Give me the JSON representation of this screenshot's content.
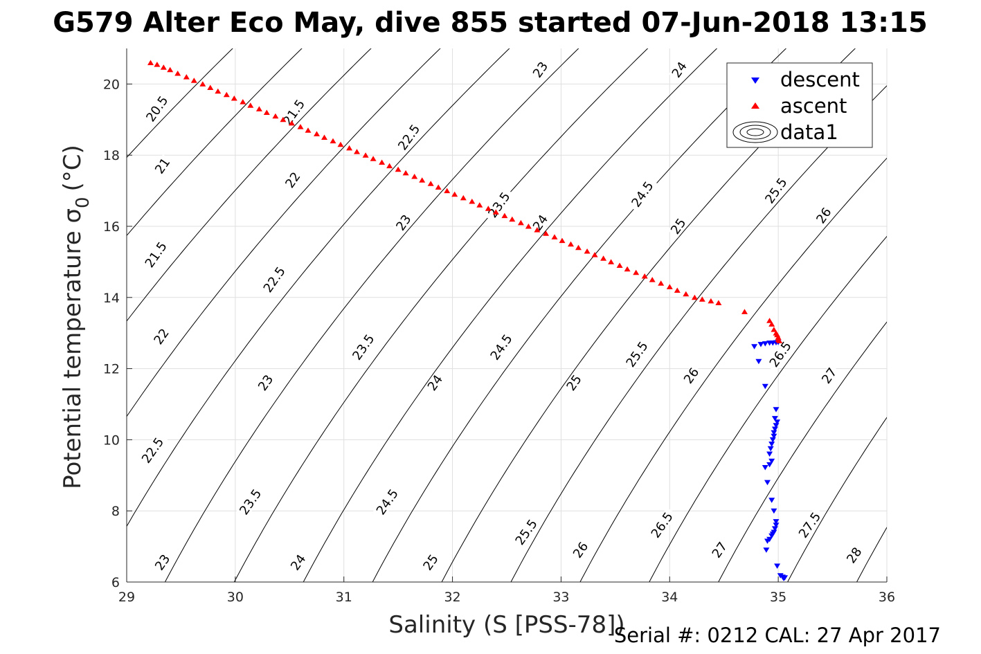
{
  "chart_data": {
    "type": "scatter",
    "title": "G579 Alter Eco May, dive 855 started 07-Jun-2018 13:15",
    "xlabel": "Salinity (S [PSS-78])",
    "ylabel": "Potential temperature σ",
    "ylabel_subscript": "0",
    "ylabel_unit": "(°C)",
    "xlim": [
      29,
      36
    ],
    "ylim": [
      6,
      21
    ],
    "x_ticks": [
      29,
      30,
      31,
      32,
      33,
      34,
      35,
      36
    ],
    "y_ticks": [
      6,
      8,
      10,
      12,
      14,
      16,
      18,
      20
    ],
    "grid": true,
    "legend": {
      "placement": "top-right",
      "entries": [
        {
          "label": "descent",
          "marker": "triangle-down",
          "color": "#0000ff"
        },
        {
          "label": "ascent",
          "marker": "triangle-up",
          "color": "#ff0000"
        },
        {
          "label": "data1",
          "marker": "contour"
        }
      ]
    },
    "contour_levels": [
      20.5,
      21,
      21.5,
      22,
      22.5,
      23,
      23.5,
      24,
      24.5,
      25,
      25.5,
      26,
      26.5,
      27,
      27.5,
      28
    ],
    "contour_labels": [
      {
        "text": "20.5",
        "s": 29.28,
        "t": 19.3
      },
      {
        "text": "21",
        "s": 29.33,
        "t": 17.7
      },
      {
        "text": "21.5",
        "s": 29.27,
        "t": 15.2
      },
      {
        "text": "22",
        "s": 29.32,
        "t": 12.9
      },
      {
        "text": "22.5",
        "s": 29.24,
        "t": 9.7
      },
      {
        "text": "23",
        "s": 29.33,
        "t": 6.55
      },
      {
        "text": "21.5",
        "s": 30.54,
        "t": 19.2
      },
      {
        "text": "22",
        "s": 30.53,
        "t": 17.3
      },
      {
        "text": "22.5",
        "s": 30.36,
        "t": 14.5
      },
      {
        "text": "23",
        "s": 30.28,
        "t": 11.6
      },
      {
        "text": "23.5",
        "s": 30.14,
        "t": 8.25
      },
      {
        "text": "24",
        "s": 30.58,
        "t": 6.55
      },
      {
        "text": "22.5",
        "s": 31.6,
        "t": 18.5
      },
      {
        "text": "23",
        "s": 31.55,
        "t": 16.1
      },
      {
        "text": "23.5",
        "s": 31.18,
        "t": 12.6
      },
      {
        "text": "24",
        "s": 31.84,
        "t": 11.6
      },
      {
        "text": "24.5",
        "s": 31.4,
        "t": 8.25
      },
      {
        "text": "25",
        "s": 31.8,
        "t": 6.55
      },
      {
        "text": "23",
        "s": 32.81,
        "t": 20.4
      },
      {
        "text": "23.5",
        "s": 32.43,
        "t": 16.6
      },
      {
        "text": "24",
        "s": 32.81,
        "t": 16.1
      },
      {
        "text": "24.5",
        "s": 32.45,
        "t": 12.6
      },
      {
        "text": "25",
        "s": 33.12,
        "t": 11.6
      },
      {
        "text": "25.5",
        "s": 32.68,
        "t": 7.4
      },
      {
        "text": "26",
        "s": 33.18,
        "t": 6.9
      },
      {
        "text": "24",
        "s": 34.09,
        "t": 20.4
      },
      {
        "text": "24.5",
        "s": 33.75,
        "t": 16.9
      },
      {
        "text": "25",
        "s": 34.08,
        "t": 16.0
      },
      {
        "text": "25.5",
        "s": 33.7,
        "t": 12.4
      },
      {
        "text": "26",
        "s": 34.2,
        "t": 11.8
      },
      {
        "text": "26.5",
        "s": 33.93,
        "t": 7.6
      },
      {
        "text": "27",
        "s": 34.46,
        "t": 6.9
      },
      {
        "text": "25.5",
        "s": 34.98,
        "t": 17.0
      },
      {
        "text": "26",
        "s": 35.42,
        "t": 16.3
      },
      {
        "text": "26.5",
        "s": 35.02,
        "t": 12.4
      },
      {
        "text": "27",
        "s": 35.47,
        "t": 11.8
      },
      {
        "text": "27.5",
        "s": 35.29,
        "t": 7.6
      },
      {
        "text": "28",
        "s": 35.7,
        "t": 6.75
      }
    ],
    "series": [
      {
        "name": "descent",
        "marker": "triangle-down",
        "color": "#0000ff",
        "points": [
          [
            34.78,
            12.62
          ],
          [
            34.84,
            12.68
          ],
          [
            34.88,
            12.7
          ],
          [
            34.92,
            12.72
          ],
          [
            34.95,
            12.72
          ],
          [
            34.98,
            12.73
          ],
          [
            35.0,
            12.74
          ],
          [
            34.82,
            12.2
          ],
          [
            34.88,
            11.5
          ],
          [
            34.98,
            10.85
          ],
          [
            34.97,
            10.6
          ],
          [
            34.99,
            10.5
          ],
          [
            34.98,
            10.4
          ],
          [
            34.97,
            10.3
          ],
          [
            34.96,
            10.2
          ],
          [
            34.96,
            10.1
          ],
          [
            34.95,
            10.0
          ],
          [
            34.94,
            9.88
          ],
          [
            34.93,
            9.75
          ],
          [
            34.92,
            9.6
          ],
          [
            34.94,
            9.4
          ],
          [
            34.92,
            9.3
          ],
          [
            34.88,
            9.22
          ],
          [
            34.9,
            8.8
          ],
          [
            34.94,
            8.3
          ],
          [
            34.96,
            8.0
          ],
          [
            34.98,
            7.7
          ],
          [
            34.98,
            7.6
          ],
          [
            34.97,
            7.5
          ],
          [
            34.96,
            7.4
          ],
          [
            34.95,
            7.35
          ],
          [
            34.94,
            7.3
          ],
          [
            34.92,
            7.2
          ],
          [
            34.9,
            7.15
          ],
          [
            34.89,
            6.9
          ],
          [
            34.99,
            6.45
          ],
          [
            35.02,
            6.18
          ],
          [
            35.04,
            6.14
          ],
          [
            35.06,
            6.12
          ],
          [
            35.05,
            6.1
          ]
        ]
      },
      {
        "name": "ascent",
        "marker": "triangle-up",
        "color": "#ff0000",
        "points": [
          [
            29.22,
            20.6
          ],
          [
            29.28,
            20.55
          ],
          [
            29.34,
            20.47
          ],
          [
            29.4,
            20.4
          ],
          [
            29.47,
            20.3
          ],
          [
            29.55,
            20.2
          ],
          [
            29.62,
            20.1
          ],
          [
            29.7,
            20.0
          ],
          [
            29.77,
            19.9
          ],
          [
            29.84,
            19.8
          ],
          [
            29.92,
            19.7
          ],
          [
            29.99,
            19.6
          ],
          [
            30.07,
            19.5
          ],
          [
            30.14,
            19.4
          ],
          [
            30.22,
            19.3
          ],
          [
            30.29,
            19.2
          ],
          [
            30.37,
            19.1
          ],
          [
            30.44,
            19.0
          ],
          [
            30.52,
            18.9
          ],
          [
            30.6,
            18.8
          ],
          [
            30.67,
            18.7
          ],
          [
            30.75,
            18.6
          ],
          [
            30.82,
            18.5
          ],
          [
            30.9,
            18.4
          ],
          [
            30.97,
            18.3
          ],
          [
            31.05,
            18.2
          ],
          [
            31.12,
            18.1
          ],
          [
            31.2,
            18.0
          ],
          [
            31.27,
            17.9
          ],
          [
            31.35,
            17.8
          ],
          [
            31.42,
            17.7
          ],
          [
            31.5,
            17.6
          ],
          [
            31.57,
            17.5
          ],
          [
            31.65,
            17.4
          ],
          [
            31.72,
            17.3
          ],
          [
            31.8,
            17.2
          ],
          [
            31.87,
            17.1
          ],
          [
            31.95,
            17.0
          ],
          [
            32.02,
            16.9
          ],
          [
            32.1,
            16.8
          ],
          [
            32.18,
            16.7
          ],
          [
            32.25,
            16.6
          ],
          [
            32.33,
            16.5
          ],
          [
            32.4,
            16.4
          ],
          [
            32.48,
            16.3
          ],
          [
            32.55,
            16.2
          ],
          [
            32.63,
            16.1
          ],
          [
            32.7,
            16.0
          ],
          [
            32.78,
            15.9
          ],
          [
            32.86,
            15.8
          ],
          [
            32.94,
            15.7
          ],
          [
            33.01,
            15.6
          ],
          [
            33.09,
            15.5
          ],
          [
            33.16,
            15.4
          ],
          [
            33.24,
            15.3
          ],
          [
            33.31,
            15.2
          ],
          [
            33.39,
            15.1
          ],
          [
            33.46,
            15.0
          ],
          [
            33.54,
            14.9
          ],
          [
            33.61,
            14.8
          ],
          [
            33.69,
            14.7
          ],
          [
            33.77,
            14.6
          ],
          [
            33.84,
            14.5
          ],
          [
            33.92,
            14.4
          ],
          [
            34.0,
            14.3
          ],
          [
            34.07,
            14.2
          ],
          [
            34.15,
            14.1
          ],
          [
            34.23,
            14.0
          ],
          [
            34.3,
            13.95
          ],
          [
            34.38,
            13.9
          ],
          [
            34.45,
            13.85
          ],
          [
            34.69,
            13.6
          ],
          [
            34.92,
            13.35
          ],
          [
            34.94,
            13.25
          ],
          [
            34.96,
            13.1
          ],
          [
            34.98,
            13.0
          ],
          [
            34.99,
            12.95
          ],
          [
            35.0,
            12.88
          ],
          [
            35.0,
            12.82
          ],
          [
            35.01,
            12.78
          ]
        ]
      }
    ]
  },
  "footer": {
    "serial_text": "Serial #: 0212  CAL: 27 Apr 2017"
  }
}
